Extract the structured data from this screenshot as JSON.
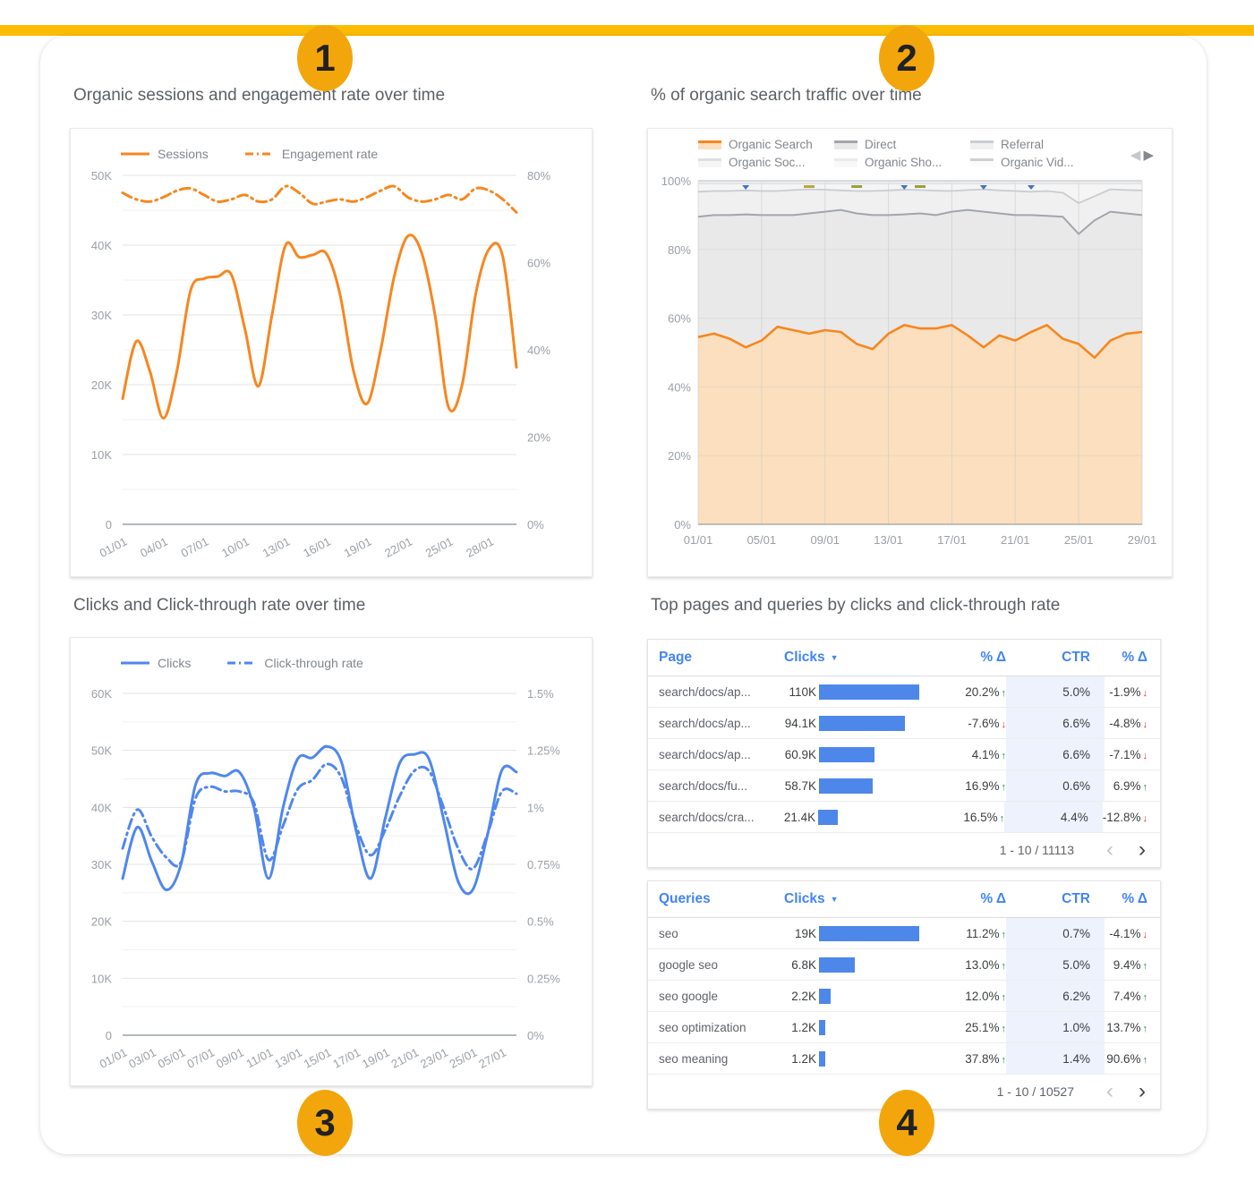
{
  "page": {
    "top_bar_color": "#FBBC04",
    "badge_color": "#F2A60B",
    "badge_text_color": "#202124",
    "badges": [
      {
        "label": "1"
      },
      {
        "label": "2"
      },
      {
        "label": "3"
      },
      {
        "label": "4"
      }
    ]
  },
  "panels": {
    "p1_title": "Organic sessions and engagement rate over time",
    "p2_title": "% of organic search traffic over time",
    "p3_title": "Clicks and Click-through rate over time",
    "p4_title": "Top pages and queries by clicks and click-through rate",
    "legend_pager": {
      "prev": "◀",
      "next": "▶"
    }
  },
  "icons": {
    "sort_desc": "▼",
    "page_prev": "‹",
    "page_next": "›",
    "arrow_up": "↑",
    "arrow_down": "↓"
  },
  "chart_data": [
    {
      "id": "sessions_engagement",
      "type": "line",
      "title": "Organic sessions and engagement rate over time",
      "legend_position": "top",
      "grid": true,
      "tick_step": 3,
      "x_ticks": [
        "01/01",
        "04/01",
        "07/01",
        "10/01",
        "13/01",
        "16/01",
        "19/01",
        "22/01",
        "25/01",
        "28/01"
      ],
      "y_left": {
        "max": 50,
        "minor": 5,
        "major": 10,
        "labels": [
          "50K",
          "40K",
          "30K",
          "20K",
          "10K",
          "0"
        ],
        "unit": "K sessions"
      },
      "y_right": {
        "max": 80,
        "labels": [
          "80%",
          "60%",
          "40%",
          "20%",
          "0%"
        ],
        "unit": "%"
      },
      "series": [
        {
          "name": "Sessions",
          "axis": "left",
          "style": "solid",
          "color": "#F6871F",
          "values": [
            18,
            26.2,
            22,
            15.2,
            22,
            33.5,
            35.2,
            35.5,
            35.8,
            28,
            19.8,
            30,
            40,
            38.3,
            38.6,
            38.8,
            33,
            22,
            17.3,
            25,
            35.5,
            41.3,
            39,
            30,
            16.8,
            20,
            33,
            39.5,
            38.3,
            22.5
          ]
        },
        {
          "name": "Engagement rate",
          "axis": "right",
          "style": "dashdot",
          "color": "#F6871F",
          "values": [
            76,
            74.5,
            74,
            75,
            76.5,
            77,
            75.5,
            74,
            74.5,
            75.5,
            74,
            74.5,
            77.5,
            76,
            73.5,
            74,
            74.5,
            74,
            75,
            76.5,
            77.5,
            75,
            74,
            74.5,
            75.5,
            74.5,
            77,
            76.5,
            74.5,
            71.5
          ]
        }
      ]
    },
    {
      "id": "organic_traffic_share",
      "type": "area",
      "title": "% of organic search traffic over time",
      "stacked_to_100": true,
      "tick_step": 4,
      "x_ticks": [
        "01/01",
        "05/01",
        "09/01",
        "13/01",
        "17/01",
        "21/01",
        "25/01",
        "29/01"
      ],
      "y_ticks": [
        "100%",
        "80%",
        "60%",
        "40%",
        "20%",
        "0%"
      ],
      "series": [
        {
          "name": "Organic Search",
          "color": "#F6871F",
          "fill": "#FBDFBE",
          "width": 2.6,
          "values": [
            54.5,
            55.5,
            54,
            51.5,
            53.5,
            57.5,
            56.5,
            55.5,
            56.5,
            56,
            52.5,
            51,
            55.5,
            58,
            57,
            57,
            58,
            55,
            51.5,
            55,
            53.5,
            56,
            58,
            54,
            52.5,
            48.5,
            53.5,
            55.5,
            56
          ]
        },
        {
          "name": "Direct",
          "color": "#A2A6AB",
          "fill": "#E9E9EA",
          "width": 2,
          "values": [
            89.5,
            90,
            90,
            90.2,
            90,
            90,
            90,
            90.5,
            91,
            91.5,
            90.5,
            90,
            90,
            90.2,
            90.5,
            90,
            91,
            91.5,
            91,
            90.5,
            90,
            90,
            89.8,
            89.5,
            84.5,
            88.5,
            91,
            90.5,
            90
          ]
        },
        {
          "name": "Referral",
          "color": "#C9CCD0",
          "fill": "#F0F0F1",
          "width": 1.8,
          "values": [
            96.8,
            97,
            97,
            97.2,
            97,
            97,
            97.3,
            97.5,
            97.4,
            97.2,
            97,
            97,
            97.2,
            97.4,
            97.3,
            97.1,
            97,
            97.3,
            97.5,
            97.2,
            97,
            96.8,
            97,
            96.5,
            93.5,
            95.5,
            97.5,
            97.3,
            97.2
          ]
        },
        {
          "name": "Organic Soc...",
          "color": "#DDDFE1",
          "fill": "#F5F5F6",
          "width": 1.5,
          "flat": 99.15
        },
        {
          "name": "Organic Sho...",
          "color": "#E8EAEB",
          "fill": "#F8F8F9",
          "width": 1.2,
          "flat": 99.6
        },
        {
          "name": "Organic Vid...",
          "color": "#CDD0D2",
          "fill": "#FBFBFC",
          "width": 1.5,
          "flat": 100
        }
      ],
      "markers": [
        {
          "i": 3,
          "shape": "triangle",
          "color": "#4472C4"
        },
        {
          "i": 7,
          "shape": "dash",
          "color": "#B9A83C"
        },
        {
          "i": 10,
          "shape": "dash",
          "color": "#9AA03A"
        },
        {
          "i": 13,
          "shape": "triangle",
          "color": "#4472C4"
        },
        {
          "i": 14,
          "shape": "dash",
          "color": "#9AA03A"
        },
        {
          "i": 18,
          "shape": "triangle",
          "color": "#4472C4"
        },
        {
          "i": 21,
          "shape": "triangle",
          "color": "#4472C4"
        }
      ]
    },
    {
      "id": "clicks_ctr",
      "type": "line",
      "title": "Clicks and Click-through rate over time",
      "legend_position": "top",
      "grid": true,
      "tick_step": 2,
      "x_ticks": [
        "01/01",
        "03/01",
        "05/01",
        "07/01",
        "09/01",
        "11/01",
        "13/01",
        "15/01",
        "17/01",
        "19/01",
        "21/01",
        "23/01",
        "25/01",
        "27/01"
      ],
      "y_left": {
        "max": 60,
        "minor": 5,
        "major": 10,
        "labels": [
          "60K",
          "50K",
          "40K",
          "30K",
          "20K",
          "10K",
          "0"
        ],
        "unit": "K clicks"
      },
      "y_right": {
        "max": 1.5,
        "labels": [
          "1.5%",
          "1.25%",
          "1%",
          "0.75%",
          "0.5%",
          "0.25%",
          "0%"
        ],
        "unit": "%"
      },
      "series": [
        {
          "name": "Clicks",
          "axis": "left",
          "style": "solid",
          "color": "#4F87EE",
          "values": [
            27.5,
            36.5,
            30.5,
            25.5,
            30,
            44,
            46,
            45.5,
            46.2,
            40,
            27.5,
            40,
            48.5,
            48.7,
            50.7,
            48,
            36,
            27.5,
            38,
            47.8,
            49.3,
            48.5,
            38,
            27,
            25.5,
            35,
            46.5,
            46.2
          ]
        },
        {
          "name": "Click-through rate",
          "axis": "right",
          "style": "dashdot",
          "color": "#4F87EE",
          "values": [
            0.82,
            0.99,
            0.87,
            0.78,
            0.76,
            1.04,
            1.09,
            1.07,
            1.07,
            1.02,
            0.77,
            0.92,
            1.08,
            1.12,
            1.19,
            1.13,
            0.92,
            0.79,
            0.9,
            1.05,
            1.16,
            1.16,
            1.0,
            0.82,
            0.73,
            0.88,
            1.07,
            1.06
          ]
        }
      ]
    },
    {
      "id": "top_pages",
      "type": "table",
      "columns": {
        "name": "Page",
        "clicks": "Clicks",
        "delta": "% Δ",
        "ctr": "CTR",
        "ctr_delta": "% Δ"
      },
      "bar_max": 110,
      "bar_color": "#4D87EA",
      "rows": [
        {
          "name": "search/docs/ap...",
          "clicks": "110K",
          "clicks_num": 110,
          "delta": "20.2%",
          "delta_dir": "up",
          "ctr": "5.0%",
          "ctr_delta": "-1.9%",
          "ctr_delta_dir": "down"
        },
        {
          "name": "search/docs/ap...",
          "clicks": "94.1K",
          "clicks_num": 94.1,
          "delta": "-7.6%",
          "delta_dir": "down",
          "ctr": "6.6%",
          "ctr_delta": "-4.8%",
          "ctr_delta_dir": "down"
        },
        {
          "name": "search/docs/ap...",
          "clicks": "60.9K",
          "clicks_num": 60.9,
          "delta": "4.1%",
          "delta_dir": "up",
          "ctr": "6.6%",
          "ctr_delta": "-7.1%",
          "ctr_delta_dir": "down"
        },
        {
          "name": "search/docs/fu...",
          "clicks": "58.7K",
          "clicks_num": 58.7,
          "delta": "16.9%",
          "delta_dir": "up",
          "ctr": "0.6%",
          "ctr_delta": "6.9%",
          "ctr_delta_dir": "up"
        },
        {
          "name": "search/docs/cra...",
          "clicks": "21.4K",
          "clicks_num": 21.4,
          "delta": "16.5%",
          "delta_dir": "up",
          "ctr": "4.4%",
          "ctr_delta": "-12.8%",
          "ctr_delta_dir": "down"
        }
      ],
      "pagination": "1 - 10 / 11113"
    },
    {
      "id": "top_queries",
      "type": "table",
      "columns": {
        "name": "Queries",
        "clicks": "Clicks",
        "delta": "% Δ",
        "ctr": "CTR",
        "ctr_delta": "% Δ"
      },
      "bar_max": 19,
      "bar_color": "#4D87EA",
      "rows": [
        {
          "name": "seo",
          "clicks": "19K",
          "clicks_num": 19,
          "delta": "11.2%",
          "delta_dir": "up",
          "ctr": "0.7%",
          "ctr_delta": "-4.1%",
          "ctr_delta_dir": "down"
        },
        {
          "name": "google seo",
          "clicks": "6.8K",
          "clicks_num": 6.8,
          "delta": "13.0%",
          "delta_dir": "up",
          "ctr": "5.0%",
          "ctr_delta": "9.4%",
          "ctr_delta_dir": "up"
        },
        {
          "name": "seo google",
          "clicks": "2.2K",
          "clicks_num": 2.2,
          "delta": "12.0%",
          "delta_dir": "up",
          "ctr": "6.2%",
          "ctr_delta": "7.4%",
          "ctr_delta_dir": "up"
        },
        {
          "name": "seo optimization",
          "clicks": "1.2K",
          "clicks_num": 1.2,
          "delta": "25.1%",
          "delta_dir": "up",
          "ctr": "1.0%",
          "ctr_delta": "13.7%",
          "ctr_delta_dir": "up"
        },
        {
          "name": "seo meaning",
          "clicks": "1.2K",
          "clicks_num": 1.2,
          "delta": "37.8%",
          "delta_dir": "up",
          "ctr": "1.4%",
          "ctr_delta": "90.6%",
          "ctr_delta_dir": "up"
        }
      ],
      "pagination": "1 - 10 / 10527"
    }
  ]
}
